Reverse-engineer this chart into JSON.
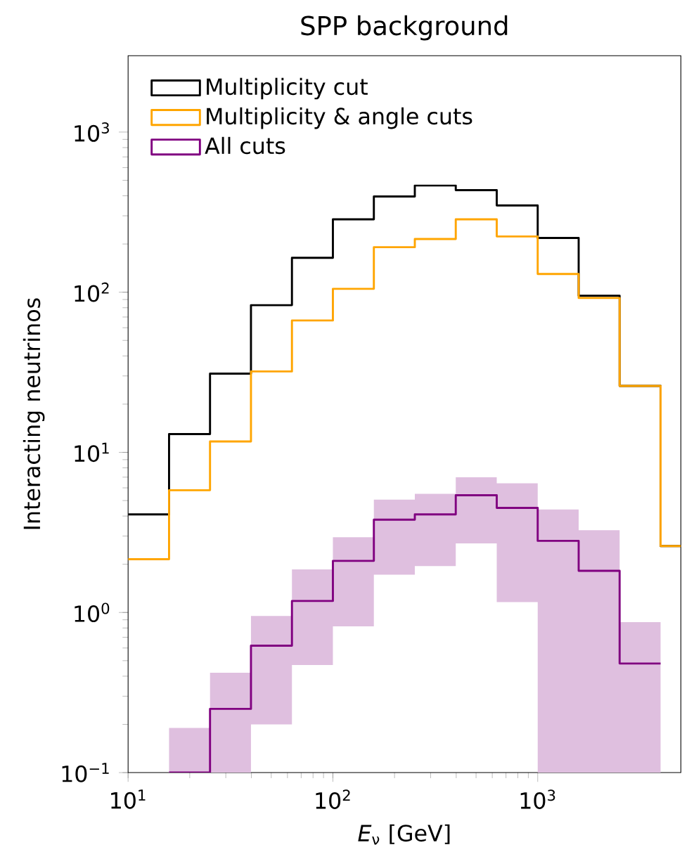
{
  "chart_data": {
    "type": "histogram",
    "title": "SPP background",
    "xlabel": "*E*$_{ν}$ [GeV]",
    "ylabel": "Interacting neutrinos",
    "bins": [
      10,
      15.85,
      25.12,
      39.81,
      63.1,
      100,
      158.5,
      251.2,
      398.1,
      631,
      1000,
      1585,
      2512,
      3981,
      6310
    ],
    "series": [
      {
        "name": "Multiplicity cut",
        "color": "#000000",
        "values": [
          4.1,
          13,
          31,
          83,
          164,
          285,
          396,
          464,
          434,
          348,
          218,
          95,
          26,
          2.6
        ]
      },
      {
        "name": "Multiplicity & angle cuts",
        "color": "#ffa500",
        "values": [
          2.15,
          5.8,
          11.7,
          32,
          66.6,
          105,
          191,
          215,
          285,
          223,
          130,
          92,
          26,
          2.6
        ]
      },
      {
        "name": "All cuts",
        "color": "#800080",
        "type": "step",
        "x": [
          15.85,
          25.12,
          39.81,
          63.1,
          100,
          158.5,
          251.2,
          398.1,
          631,
          1000,
          1585,
          2512,
          3981
        ],
        "values": [
          0.1,
          0.25,
          0.62,
          1.18,
          2.1,
          3.8,
          4.1,
          5.4,
          4.5,
          2.8,
          1.82,
          0.48,
          0.48
        ],
        "lower": [
          0.1,
          0.1,
          0.2,
          0.47,
          0.82,
          1.72,
          1.95,
          2.7,
          1.16,
          0.1,
          0.1,
          0.1,
          0.1
        ],
        "upper": [
          0.19,
          0.42,
          0.95,
          1.86,
          2.95,
          5.06,
          5.5,
          7.0,
          6.4,
          4.4,
          3.26,
          0.87,
          0.87
        ]
      }
    ],
    "log": "xy",
    "grid": false,
    "legend": "top left",
    "xlim": [
      10,
      5000
    ],
    "ylim": [
      0.1,
      3000
    ],
    "xticks": [
      {
        "value": 10,
        "label": "10$^{1}$"
      },
      {
        "value": 100,
        "label": "10$^{2}$"
      },
      {
        "value": 1000,
        "label": "10$^{3}$"
      }
    ],
    "yticks": [
      {
        "value": 0.1,
        "label": "10$^{−1}$"
      },
      {
        "value": 1,
        "label": "10$^{0}$"
      },
      {
        "value": 10,
        "label": "10$^{1}$"
      },
      {
        "value": 100,
        "label": "10$^{2}$"
      },
      {
        "value": 1000,
        "label": "10$^{3}$"
      }
    ]
  }
}
